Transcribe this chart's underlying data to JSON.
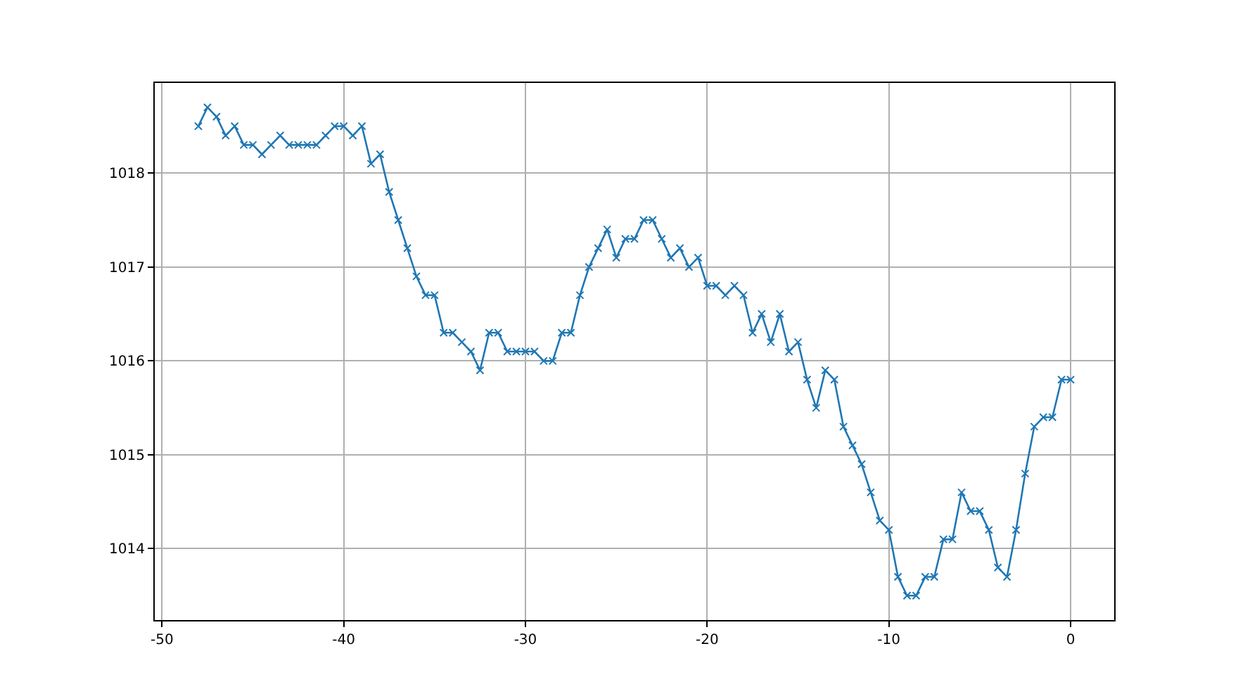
{
  "chart_data": {
    "type": "line",
    "marker": "cross",
    "line_style": "solid",
    "grid": true,
    "xlim": [
      -50.4,
      2.4
    ],
    "xticks": [
      -50,
      -40,
      -30,
      -20,
      -10,
      0
    ],
    "ylim": [
      1013.24,
      1018.96
    ],
    "yticks": [
      1014,
      1015,
      1016,
      1017,
      1018
    ],
    "x": [
      -48,
      -47.5,
      -47,
      -46.5,
      -46,
      -45.5,
      -45,
      -44.5,
      -44,
      -43.5,
      -43,
      -42.5,
      -42,
      -41.5,
      -41,
      -40.5,
      -40,
      -39.5,
      -39,
      -38.5,
      -38,
      -37.5,
      -37,
      -36.5,
      -36,
      -35.5,
      -35,
      -34.5,
      -34,
      -33.5,
      -33,
      -32.5,
      -32,
      -31.5,
      -31,
      -30.5,
      -30,
      -29.5,
      -29,
      -28.5,
      -28,
      -27.5,
      -27,
      -26.5,
      -26,
      -25.5,
      -25,
      -24.5,
      -24,
      -23.5,
      -23,
      -22.5,
      -22,
      -21.5,
      -21,
      -20.5,
      -20,
      -19.5,
      -19,
      -18.5,
      -18,
      -17.5,
      -17,
      -16.5,
      -16,
      -15.5,
      -15,
      -14.5,
      -14,
      -13.5,
      -13,
      -12.5,
      -12,
      -11.5,
      -11,
      -10.5,
      -10,
      -9.5,
      -9,
      -8.5,
      -8,
      -7.5,
      -7,
      -6.5,
      -6,
      -5.5,
      -5,
      -4.5,
      -4,
      -3.5,
      -3,
      -2.5,
      -2,
      -1.5,
      -1,
      -0.5,
      0
    ],
    "series": [
      {
        "color": "#1f77b4",
        "values": [
          1018.5,
          1018.7,
          1018.6,
          1018.4,
          1018.5,
          1018.3,
          1018.3,
          1018.2,
          1018.3,
          1018.4,
          1018.3,
          1018.3,
          1018.3,
          1018.3,
          1018.4,
          1018.5,
          1018.5,
          1018.4,
          1018.5,
          1018.1,
          1018.2,
          1017.8,
          1017.5,
          1017.2,
          1016.9,
          1016.7,
          1016.7,
          1016.3,
          1016.3,
          1016.2,
          1016.1,
          1015.9,
          1016.3,
          1016.3,
          1016.1,
          1016.1,
          1016.1,
          1016.1,
          1016.0,
          1016.0,
          1016.3,
          1016.3,
          1016.7,
          1017.0,
          1017.2,
          1017.4,
          1017.1,
          1017.3,
          1017.3,
          1017.5,
          1017.5,
          1017.3,
          1017.1,
          1017.2,
          1017.0,
          1017.1,
          1016.8,
          1016.8,
          1016.7,
          1016.8,
          1016.7,
          1016.3,
          1016.5,
          1016.2,
          1016.5,
          1016.1,
          1016.2,
          1015.8,
          1015.5,
          1015.9,
          1015.8,
          1015.3,
          1015.1,
          1014.9,
          1014.6,
          1014.3,
          1014.2,
          1013.7,
          1013.5,
          1013.5,
          1013.7,
          1013.7,
          1014.1,
          1014.1,
          1014.6,
          1014.4,
          1014.4,
          1014.2,
          1013.8,
          1013.7,
          1014.2,
          1014.8,
          1015.3,
          1015.4,
          1015.4,
          1015.8,
          1015.8
        ]
      }
    ]
  }
}
